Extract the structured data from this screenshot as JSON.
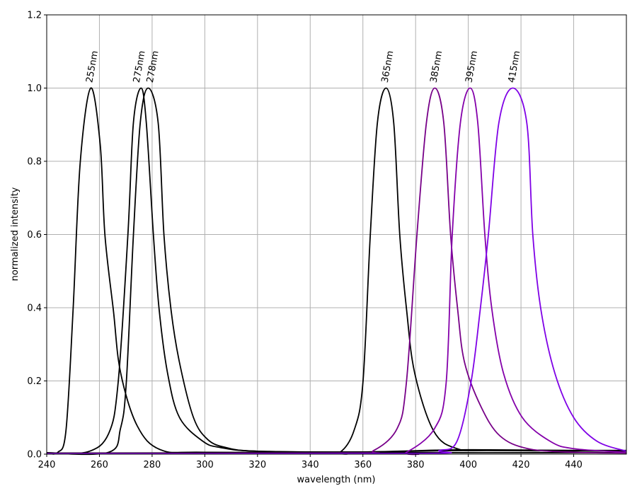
{
  "chart_data": {
    "type": "line",
    "title": "",
    "xlabel": "wavelength (nm)",
    "ylabel": "normalized intensity",
    "xlim": [
      240,
      460
    ],
    "ylim": [
      0,
      1.2
    ],
    "xticks": [
      240,
      260,
      280,
      300,
      320,
      340,
      360,
      380,
      400,
      420,
      440
    ],
    "yticks": [
      0.0,
      0.2,
      0.4,
      0.6,
      0.8,
      1.0,
      1.2
    ],
    "ytick_labels": [
      "0.0",
      "0.2",
      "0.4",
      "0.6",
      "0.8",
      "1.0",
      "1.2"
    ],
    "grid": true,
    "legend": "none",
    "series": [
      {
        "name": "255nm",
        "color": "#000000",
        "peak": [
          256.7,
          1.0
        ],
        "points": [
          [
            240,
            0.004
          ],
          [
            244.2,
            0.005
          ],
          [
            247.3,
            0.064
          ],
          [
            250.0,
            0.393
          ],
          [
            252.7,
            0.795
          ],
          [
            256.7,
            1.0
          ],
          [
            260.3,
            0.846
          ],
          [
            262.1,
            0.598
          ],
          [
            265.3,
            0.393
          ],
          [
            268.0,
            0.224
          ],
          [
            274.3,
            0.078
          ],
          [
            283.2,
            0.012
          ],
          [
            300,
            0.005
          ],
          [
            360,
            0.004
          ],
          [
            460,
            0.004
          ]
        ]
      },
      {
        "name": "275nm",
        "color": "#000000",
        "peak": [
          275.8,
          1.0
        ],
        "points": [
          [
            240,
            0.004
          ],
          [
            255.4,
            0.006
          ],
          [
            263.5,
            0.056
          ],
          [
            267.1,
            0.195
          ],
          [
            270.8,
            0.598
          ],
          [
            272.9,
            0.905
          ],
          [
            275.8,
            1.0
          ],
          [
            277.8,
            0.905
          ],
          [
            280.5,
            0.598
          ],
          [
            282.7,
            0.393
          ],
          [
            285.9,
            0.22
          ],
          [
            290.4,
            0.1
          ],
          [
            299.3,
            0.035
          ],
          [
            306,
            0.018
          ],
          [
            320,
            0.008
          ],
          [
            360,
            0.006
          ],
          [
            400,
            0.012
          ],
          [
            460,
            0.008
          ]
        ]
      },
      {
        "name": "278nm",
        "color": "#000000",
        "peak": [
          278.5,
          1.0
        ],
        "points": [
          [
            240,
            0.003
          ],
          [
            263.5,
            0.005
          ],
          [
            268.0,
            0.07
          ],
          [
            270.2,
            0.195
          ],
          [
            272.9,
            0.598
          ],
          [
            275.5,
            0.905
          ],
          [
            278.5,
            1.0
          ],
          [
            282.3,
            0.905
          ],
          [
            284.5,
            0.598
          ],
          [
            287.2,
            0.393
          ],
          [
            290.4,
            0.25
          ],
          [
            295.7,
            0.1
          ],
          [
            301.1,
            0.04
          ],
          [
            308,
            0.018
          ],
          [
            320,
            0.008
          ],
          [
            360,
            0.006
          ],
          [
            400,
            0.01
          ],
          [
            460,
            0.01
          ]
        ]
      },
      {
        "name": "365nm",
        "color": "#000000",
        "peak": [
          368.8,
          1.0
        ],
        "points": [
          [
            240,
            0.003
          ],
          [
            345,
            0.004
          ],
          [
            351.3,
            0.005
          ],
          [
            356.6,
            0.064
          ],
          [
            360.0,
            0.195
          ],
          [
            362.8,
            0.598
          ],
          [
            365.5,
            0.905
          ],
          [
            368.8,
            1.0
          ],
          [
            371.7,
            0.905
          ],
          [
            374.0,
            0.598
          ],
          [
            376.6,
            0.393
          ],
          [
            379.7,
            0.22
          ],
          [
            386.8,
            0.064
          ],
          [
            395.7,
            0.015
          ],
          [
            410,
            0.01
          ],
          [
            460,
            0.008
          ]
        ]
      },
      {
        "name": "385nm",
        "color": "#770088",
        "peak": [
          387.3,
          1.0
        ],
        "points": [
          [
            240,
            0.002
          ],
          [
            355,
            0.003
          ],
          [
            364.1,
            0.01
          ],
          [
            373.0,
            0.07
          ],
          [
            376.5,
            0.195
          ],
          [
            380.5,
            0.598
          ],
          [
            384.1,
            0.905
          ],
          [
            387.3,
            1.0
          ],
          [
            390.7,
            0.905
          ],
          [
            393.3,
            0.598
          ],
          [
            396.0,
            0.393
          ],
          [
            398.6,
            0.25
          ],
          [
            404.8,
            0.13
          ],
          [
            412.0,
            0.05
          ],
          [
            422.6,
            0.015
          ],
          [
            440,
            0.005
          ],
          [
            460,
            0.003
          ]
        ]
      },
      {
        "name": "395nm",
        "color": "#8400aa",
        "peak": [
          400.7,
          1.0
        ],
        "points": [
          [
            240,
            0.001
          ],
          [
            370,
            0.002
          ],
          [
            376.5,
            0.005
          ],
          [
            387.2,
            0.07
          ],
          [
            391.6,
            0.195
          ],
          [
            393.9,
            0.598
          ],
          [
            397.0,
            0.905
          ],
          [
            400.7,
            1.0
          ],
          [
            403.6,
            0.905
          ],
          [
            406.3,
            0.598
          ],
          [
            409.0,
            0.393
          ],
          [
            413.4,
            0.22
          ],
          [
            420.5,
            0.1
          ],
          [
            431.1,
            0.035
          ],
          [
            440,
            0.015
          ],
          [
            460,
            0.005
          ]
        ]
      },
      {
        "name": "415nm",
        "color": "#7f00e6",
        "peak": [
          416.9,
          1.0
        ],
        "points": [
          [
            240,
            0.001
          ],
          [
            380.6,
            0.002
          ],
          [
            389,
            0.01
          ],
          [
            395.7,
            0.035
          ],
          [
            401.0,
            0.195
          ],
          [
            404.5,
            0.393
          ],
          [
            407.6,
            0.598
          ],
          [
            411.6,
            0.905
          ],
          [
            416.9,
            1.0
          ],
          [
            422.2,
            0.905
          ],
          [
            424.5,
            0.598
          ],
          [
            427.6,
            0.393
          ],
          [
            432.9,
            0.22
          ],
          [
            440.0,
            0.1
          ],
          [
            448.9,
            0.035
          ],
          [
            460,
            0.008
          ]
        ]
      }
    ]
  }
}
